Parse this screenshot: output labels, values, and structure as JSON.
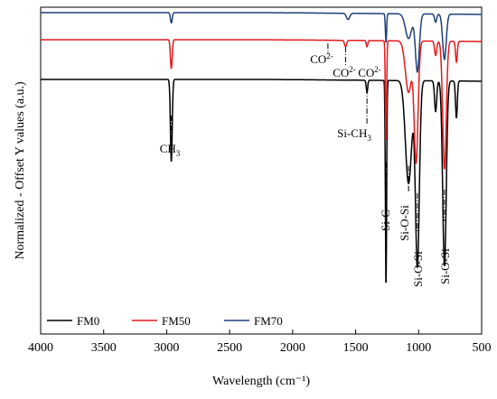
{
  "chart_data": {
    "type": "line",
    "title": "",
    "xlabel": "Wavelength (cm⁻¹)",
    "ylabel": "Normalized - Offset Y values (a.u.)",
    "xlim": [
      4000,
      500
    ],
    "x_reversed": true,
    "xticks": [
      4000,
      3500,
      3000,
      2500,
      2000,
      1500,
      1000,
      500
    ],
    "yticks": [],
    "grid": false,
    "legend_position": "bottom",
    "series": [
      {
        "name": "FM0",
        "color": "#000000",
        "baseline": 0.0,
        "peaks": [
          {
            "x": 2963,
            "depth": 0.4,
            "width": 10
          },
          {
            "x": 1410,
            "depth": 0.06,
            "width": 8
          },
          {
            "x": 1259,
            "depth": 1.0,
            "width": 7
          },
          {
            "x": 1080,
            "depth": 0.5,
            "width": 35
          },
          {
            "x": 1010,
            "depth": 0.9,
            "width": 22
          },
          {
            "x": 865,
            "depth": 0.15,
            "width": 12
          },
          {
            "x": 795,
            "depth": 0.9,
            "width": 20
          },
          {
            "x": 700,
            "depth": 0.18,
            "width": 10
          }
        ]
      },
      {
        "name": "FM50",
        "color": "#e41a1c",
        "baseline": 0.22,
        "peaks": [
          {
            "x": 2963,
            "depth": 0.14,
            "width": 10
          },
          {
            "x": 1580,
            "depth": 0.03,
            "width": 12
          },
          {
            "x": 1410,
            "depth": 0.03,
            "width": 8
          },
          {
            "x": 1259,
            "depth": 0.49,
            "width": 7
          },
          {
            "x": 1080,
            "depth": 0.25,
            "width": 35
          },
          {
            "x": 1020,
            "depth": 0.58,
            "width": 22
          },
          {
            "x": 865,
            "depth": 0.07,
            "width": 12
          },
          {
            "x": 795,
            "depth": 0.62,
            "width": 20
          },
          {
            "x": 700,
            "depth": 0.1,
            "width": 10
          }
        ]
      },
      {
        "name": "FM70",
        "color": "#1f3f7a",
        "baseline": 0.37,
        "peaks": [
          {
            "x": 2963,
            "depth": 0.05,
            "width": 10
          },
          {
            "x": 1560,
            "depth": 0.03,
            "width": 18
          },
          {
            "x": 1259,
            "depth": 0.14,
            "width": 7
          },
          {
            "x": 1080,
            "depth": 0.12,
            "width": 35
          },
          {
            "x": 1010,
            "depth": 0.28,
            "width": 22
          },
          {
            "x": 865,
            "depth": 0.04,
            "width": 12
          },
          {
            "x": 795,
            "depth": 0.22,
            "width": 20
          }
        ]
      }
    ],
    "annotations": [
      {
        "text": "CH",
        "sub": "3",
        "sup": "",
        "rotated": false
      },
      {
        "text": "CO",
        "sub": "",
        "sup": "2-",
        "rotated": false
      },
      {
        "text": "CO",
        "sub": "",
        "sup": "2-",
        "rotated": false
      },
      {
        "text": "CO",
        "sub": "",
        "sup": "2-",
        "rotated": false
      },
      {
        "text": "Si-CH",
        "sub": "3",
        "sup": "",
        "rotated": false
      },
      {
        "text": "Si-C",
        "sub": "",
        "sup": "",
        "rotated": true
      },
      {
        "text": "Si-O-Si",
        "sub": "",
        "sup": "",
        "rotated": true
      },
      {
        "text": "Si-O-Si",
        "sub": "",
        "sup": "",
        "rotated": true
      },
      {
        "text": "Si-O-Si",
        "sub": "",
        "sup": "",
        "rotated": true
      }
    ]
  }
}
